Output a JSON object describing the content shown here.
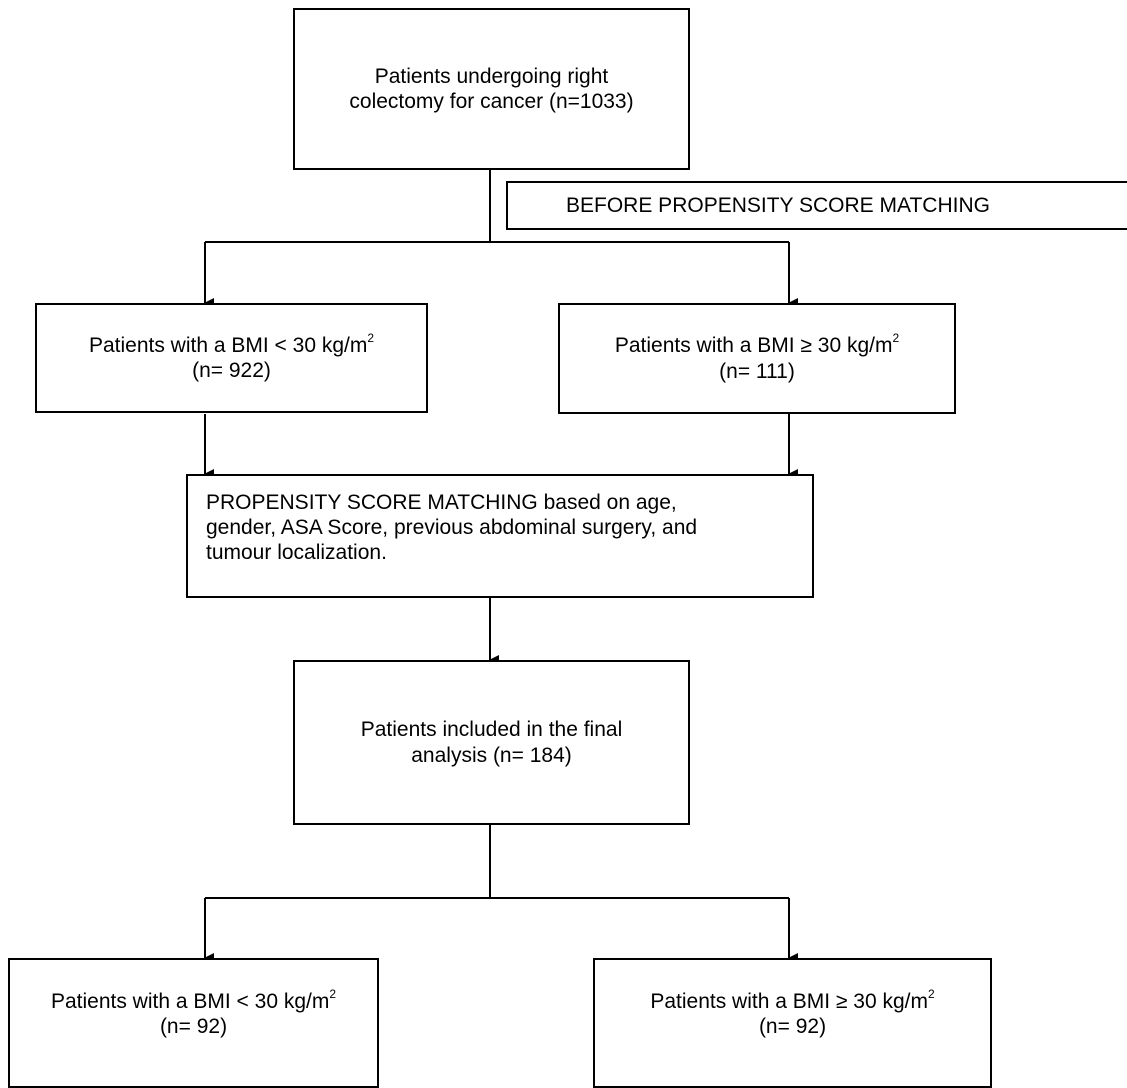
{
  "nodes": {
    "start": {
      "lines": [
        "Patients undergoing right",
        "colectomy for cancer (n=1033)"
      ]
    },
    "before_label": {
      "text": "BEFORE PROPENSITY SCORE MATCHING"
    },
    "bmi_low_before": {
      "line1": "Patients with a BMI < 30 kg/m",
      "sup": "2",
      "line2": "(n= 922)"
    },
    "bmi_high_before": {
      "line1": "Patients with a BMI ≥ 30 kg/m",
      "sup": "2",
      "line2": "(n= 111)"
    },
    "matching": {
      "lines": [
        "PROPENSITY SCORE MATCHING based on age,",
        "gender, ASA Score, previous abdominal surgery, and",
        "tumour localization."
      ]
    },
    "final": {
      "lines": [
        "Patients included in the final",
        "analysis (n= 184)"
      ]
    },
    "bmi_low_after": {
      "line1": "Patients with a BMI < 30 kg/m",
      "sup": "2",
      "line2": "(n= 92)"
    },
    "bmi_high_after": {
      "line1": "Patients with a BMI ≥ 30 kg/m",
      "sup": "2",
      "line2": "(n= 92)"
    }
  }
}
